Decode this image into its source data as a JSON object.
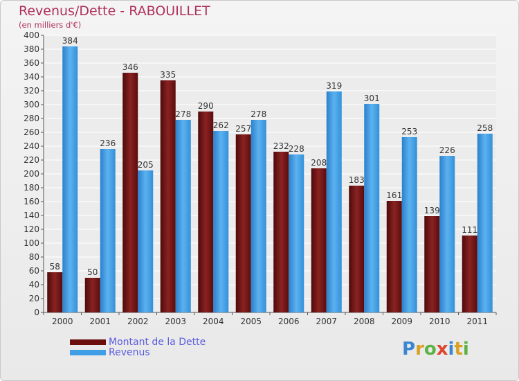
{
  "header": {
    "title": "Revenus/Dette - RABOUILLET",
    "subtitle": "(en milliers d'€)"
  },
  "legend": {
    "items": [
      {
        "label": "Montant de la Dette",
        "color": "#7a1111"
      },
      {
        "label": "Revenus",
        "color": "#3f9ee6"
      }
    ]
  },
  "logo": {
    "letters": [
      "P",
      "r",
      "o",
      "x",
      "i",
      "t",
      "i"
    ],
    "colors": [
      "#3a86d1",
      "#d9a123",
      "#5db244",
      "#e0442f",
      "#3a86d1",
      "#d9a123",
      "#5db244"
    ]
  },
  "chart_data": {
    "type": "bar",
    "title": "Revenus/Dette - RABOUILLET",
    "subtitle": "(en milliers d'€)",
    "xlabel": "",
    "ylabel": "",
    "ylim": [
      0,
      400
    ],
    "ytick_step": 20,
    "grid": true,
    "legend_position": "bottom-left",
    "categories": [
      "2000",
      "2001",
      "2002",
      "2003",
      "2004",
      "2005",
      "2006",
      "2007",
      "2008",
      "2009",
      "2010",
      "2011"
    ],
    "series": [
      {
        "name": "Montant de la Dette",
        "color": "#7a1111",
        "values": [
          58,
          50,
          346,
          335,
          290,
          257,
          232,
          208,
          183,
          161,
          139,
          111
        ]
      },
      {
        "name": "Revenus",
        "color": "#3f9ee6",
        "values": [
          384,
          236,
          205,
          278,
          262,
          278,
          228,
          319,
          301,
          253,
          226,
          258
        ]
      }
    ]
  }
}
